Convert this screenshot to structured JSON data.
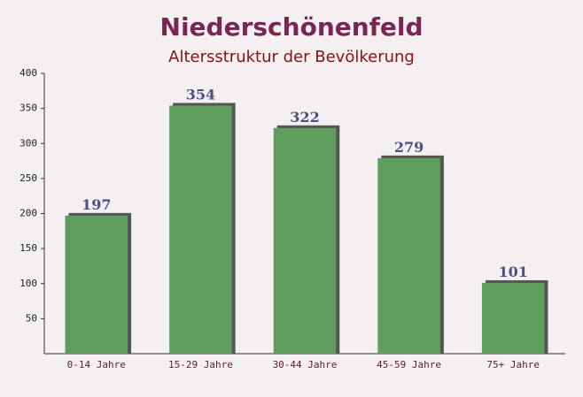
{
  "chart_data": {
    "type": "bar",
    "title": "Niederschönenfeld",
    "subtitle": "Altersstruktur der Bevölkerung",
    "categories": [
      "0-14 Jahre",
      "15-29 Jahre",
      "30-44 Jahre",
      "45-59 Jahre",
      "75+ Jahre"
    ],
    "values": [
      197,
      354,
      322,
      279,
      101
    ],
    "color": "#5f9e5c",
    "ylim": [
      0,
      400
    ],
    "yticks": [
      50,
      100,
      150,
      200,
      250,
      300,
      350,
      400
    ],
    "grid": false
  }
}
